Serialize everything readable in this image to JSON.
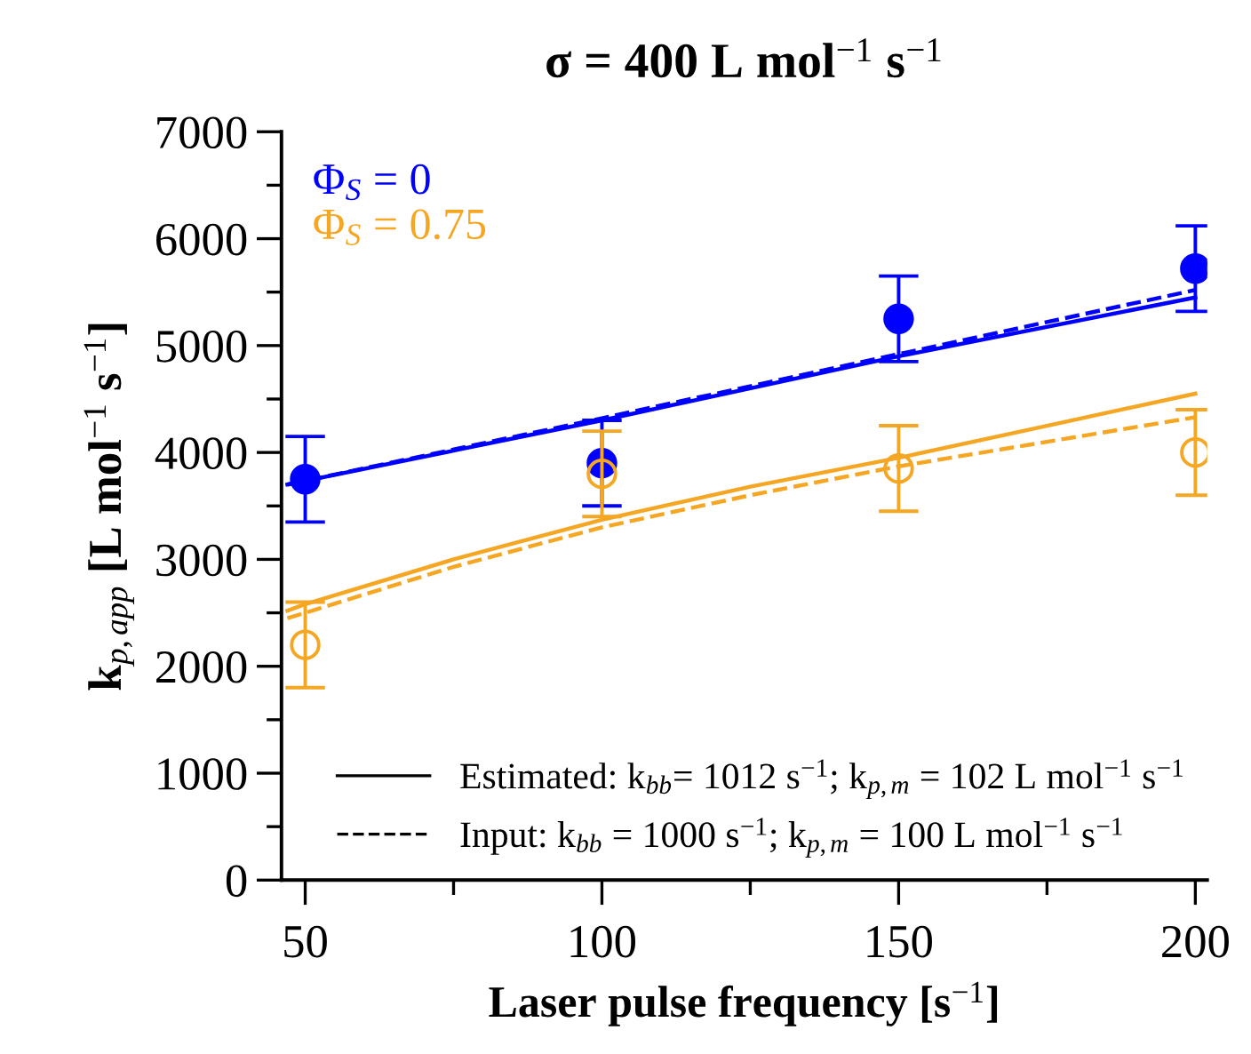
{
  "chart_data": {
    "type": "line",
    "title": "σ = 400 L mol$^{−1}$ s$^{−1}$",
    "xlabel": "Laser pulse frequency [s$^{−1}$]",
    "ylabel": "k$_{p,app}$ [L mol$^{−1}$ s$^{−1}$]",
    "xlim": [
      46,
      202
    ],
    "ylim": [
      0,
      7000
    ],
    "xticks": [
      50,
      {
        "value": 75,
        "label": null
      },
      100,
      {
        "value": 125,
        "label": null
      },
      150,
      {
        "value": 175,
        "label": null
      },
      200
    ],
    "yticks": [
      0,
      {
        "value": 500,
        "label": null
      },
      1000,
      {
        "value": 1500,
        "label": null
      },
      2000,
      {
        "value": 2500,
        "label": null
      },
      3000,
      {
        "value": 3500,
        "label": null
      },
      4000,
      {
        "value": 4500,
        "label": null
      },
      5000,
      {
        "value": 5500,
        "label": null
      },
      6000,
      {
        "value": 6500,
        "label": null
      },
      7000
    ],
    "grid": false,
    "legend": "top left",
    "annotations": [
      "Estimated: k$_{bb}$= 1012 s$^{−1}$; k$_{p,m}$ = 102 L mol$^{−1}$ s$^{−1}$",
      "Input: k$_{bb}$ = 1000 s$^{−1}$; k$_{p,m}$ = 100 L mol$^{−1}$ s$^{−1}$"
    ],
    "series": [
      {
        "type": "scatter",
        "name": "Φ$_{S}$ = 0",
        "color": "#0000ff",
        "marker": "circle",
        "x": [
          50,
          100,
          150,
          200
        ],
        "values": [
          3750,
          3900,
          5250,
          5720
        ],
        "errors": [
          400,
          400,
          400,
          400
        ]
      },
      {
        "type": "scatter",
        "name": "Φ$_{S}$ = 0.75",
        "color": "#f5a623",
        "marker": "circle",
        "x": [
          50,
          100,
          150,
          200
        ],
        "values": [
          2200,
          3800,
          3850,
          4000
        ],
        "errors": [
          400,
          400,
          400,
          400
        ]
      },
      {
        "color": "#0000ff",
        "line_style": "solid",
        "x": [
          47,
          100,
          150,
          200
        ],
        "values": [
          3700,
          4300,
          4900,
          5450
        ]
      },
      {
        "color": "#0000ff",
        "line_style": "dashed",
        "x": [
          47,
          100,
          150,
          200
        ],
        "values": [
          3700,
          4320,
          4920,
          5520
        ]
      },
      {
        "color": "#f5a623",
        "line_style": "solid",
        "x": [
          47,
          50,
          75,
          100,
          125,
          150,
          175,
          200
        ],
        "values": [
          2520,
          2580,
          3000,
          3370,
          3680,
          3950,
          4250,
          4550
        ]
      },
      {
        "color": "#f5a623",
        "line_style": "dashed",
        "x": [
          47,
          50,
          75,
          100,
          125,
          150,
          175,
          200
        ],
        "values": [
          2450,
          2500,
          2930,
          3300,
          3600,
          3870,
          4100,
          4330
        ]
      }
    ]
  }
}
